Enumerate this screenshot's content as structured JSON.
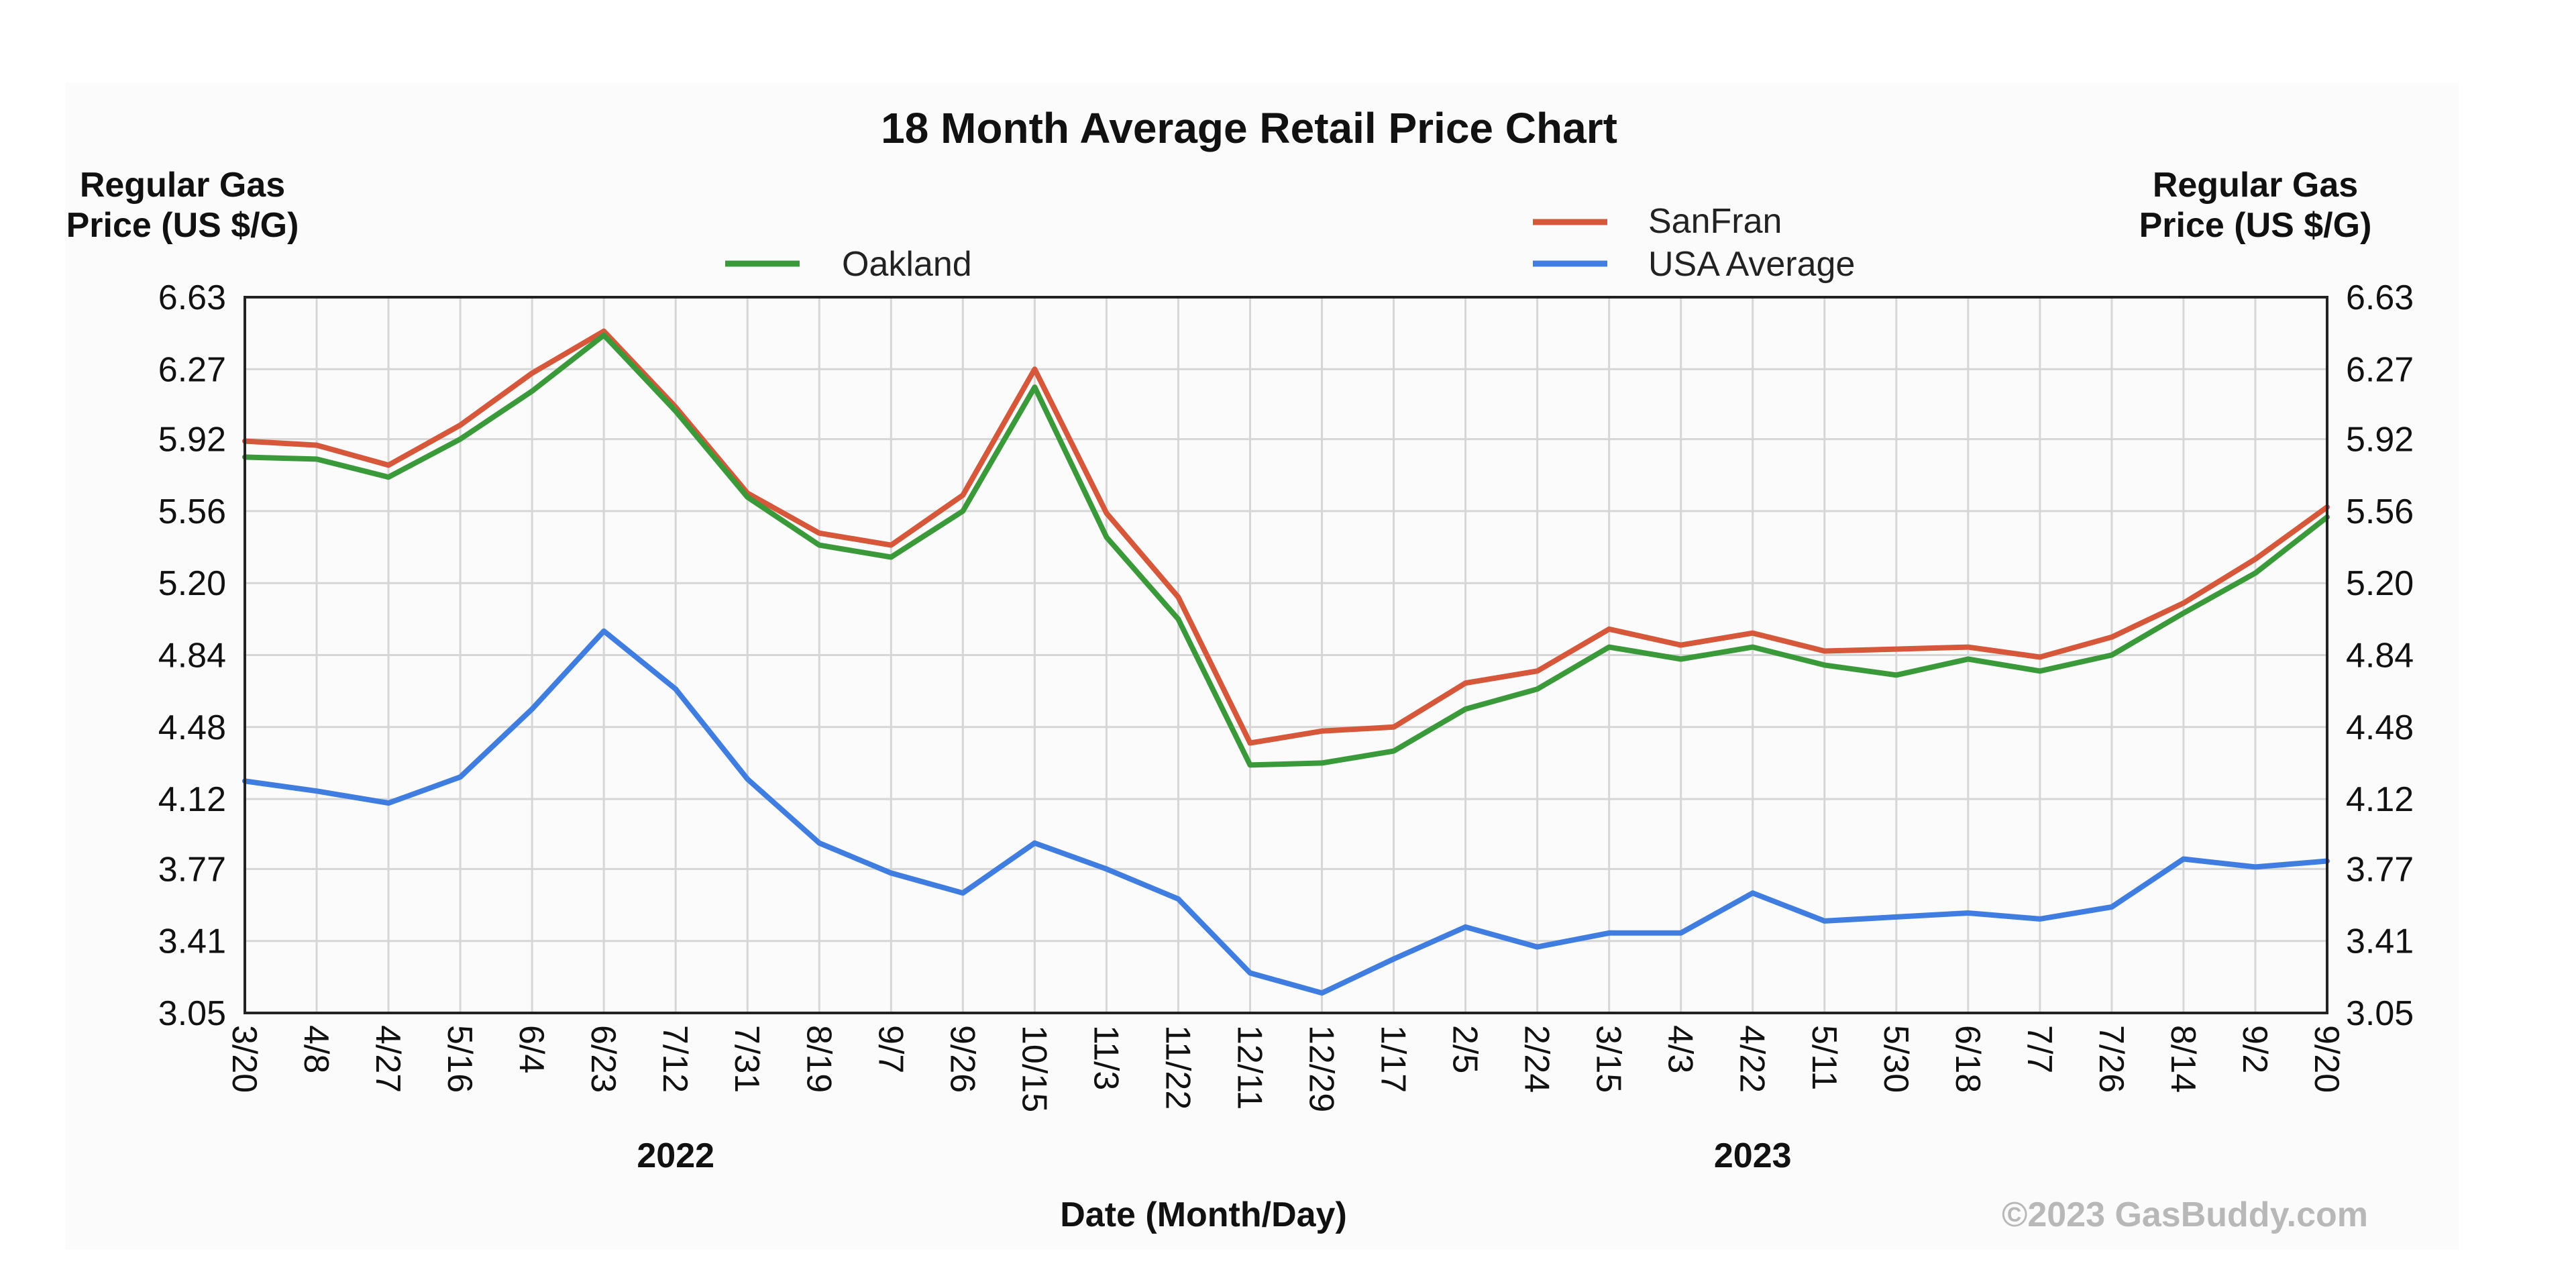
{
  "chart_data": {
    "type": "line",
    "title": "18 Month Average Retail Price Chart",
    "xlabel": "Date (Month/Day)",
    "ylabel_left": "Regular Gas Price (US $/G)",
    "ylabel_right": "Regular Gas Price (US $/G)",
    "ylabel_left_lines": [
      "Regular Gas",
      "Price (US $/G)"
    ],
    "ylabel_right_lines": [
      "Regular Gas",
      "Price (US $/G)"
    ],
    "ylim": [
      3.05,
      6.63
    ],
    "y_ticks": [
      "6.63",
      "6.27",
      "5.92",
      "5.56",
      "5.20",
      "4.84",
      "4.48",
      "4.12",
      "3.77",
      "3.41",
      "3.05"
    ],
    "x_ticks": [
      "3/20",
      "4/8",
      "4/27",
      "5/16",
      "6/4",
      "6/23",
      "7/12",
      "7/31",
      "8/19",
      "9/7",
      "9/26",
      "10/15",
      "11/3",
      "11/22",
      "12/11",
      "12/29",
      "1/17",
      "2/5",
      "2/24",
      "3/15",
      "4/3",
      "4/22",
      "5/11",
      "5/30",
      "6/18",
      "7/7",
      "7/26",
      "8/14",
      "9/2",
      "9/20"
    ],
    "year_labels": [
      {
        "label": "2022",
        "at": "7/12"
      },
      {
        "label": "2023",
        "at": "4/22"
      }
    ],
    "grid": true,
    "legend": [
      "Oakland",
      "SanFran",
      "USA Average"
    ],
    "credit": "©2023 GasBuddy.com",
    "x": [
      "2022-03-20",
      "2022-04-08",
      "2022-04-27",
      "2022-05-16",
      "2022-06-04",
      "2022-06-23",
      "2022-07-12",
      "2022-07-31",
      "2022-08-19",
      "2022-09-07",
      "2022-09-26",
      "2022-10-15",
      "2022-11-03",
      "2022-11-22",
      "2022-12-11",
      "2022-12-29",
      "2023-01-17",
      "2023-02-05",
      "2023-02-24",
      "2023-03-15",
      "2023-04-03",
      "2023-04-22",
      "2023-05-11",
      "2023-05-30",
      "2023-06-18",
      "2023-07-07",
      "2023-07-26",
      "2023-08-14",
      "2023-09-02",
      "2023-09-20"
    ],
    "series": [
      {
        "name": "Oakland",
        "color": "#3a9a3a",
        "values": [
          5.83,
          5.82,
          5.73,
          5.92,
          6.16,
          6.44,
          6.06,
          5.63,
          5.39,
          5.33,
          5.56,
          6.18,
          5.43,
          5.02,
          4.29,
          4.3,
          4.36,
          4.57,
          4.67,
          4.88,
          4.82,
          4.88,
          4.79,
          4.74,
          4.82,
          4.76,
          4.84,
          5.05,
          5.25,
          5.53
        ]
      },
      {
        "name": "SanFran",
        "color": "#d6573a",
        "values": [
          5.91,
          5.89,
          5.79,
          5.99,
          6.25,
          6.46,
          6.08,
          5.65,
          5.45,
          5.39,
          5.64,
          6.27,
          5.55,
          5.13,
          4.4,
          4.46,
          4.48,
          4.7,
          4.76,
          4.97,
          4.89,
          4.95,
          4.86,
          4.87,
          4.88,
          4.83,
          4.93,
          5.1,
          5.32,
          5.58
        ]
      },
      {
        "name": "USA Average",
        "color": "#3f7de0",
        "values": [
          4.21,
          4.16,
          4.1,
          4.23,
          4.57,
          4.96,
          4.67,
          4.22,
          3.9,
          3.75,
          3.65,
          3.9,
          3.77,
          3.62,
          3.25,
          3.15,
          3.32,
          3.48,
          3.38,
          3.45,
          3.45,
          3.65,
          3.51,
          3.53,
          3.55,
          3.52,
          3.58,
          3.82,
          3.78,
          3.81
        ]
      }
    ]
  }
}
